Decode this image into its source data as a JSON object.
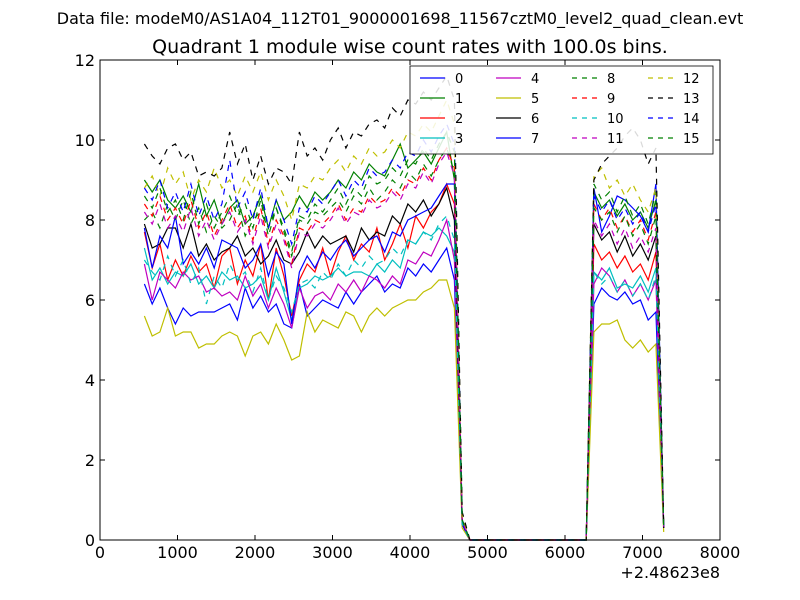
{
  "chart_data": {
    "type": "line",
    "suptitle": "Data file: modeM0/AS1A04_112T01_9000001698_11567cztM0_level2_quad_clean.evt",
    "title": "Quadrant 1 module wise count rates with 100.0s bins.",
    "xlabel": "",
    "ylabel": "",
    "x_offset_label": "+2.48623e8",
    "xlim": [
      0,
      8000
    ],
    "ylim": [
      0,
      12
    ],
    "xticks": [
      0,
      1000,
      2000,
      3000,
      4000,
      5000,
      6000,
      7000,
      8000
    ],
    "yticks": [
      0,
      2,
      4,
      6,
      8,
      10,
      12
    ],
    "grid": false,
    "legend_position": "top-right",
    "legend_columns": 4,
    "x": [
      573,
      673,
      773,
      873,
      973,
      1073,
      1173,
      1273,
      1373,
      1473,
      1573,
      1673,
      1773,
      1873,
      1973,
      2073,
      2173,
      2273,
      2373,
      2473,
      2573,
      2673,
      2773,
      2873,
      2973,
      3073,
      3173,
      3273,
      3373,
      3473,
      3573,
      3673,
      3773,
      3873,
      3973,
      4073,
      4173,
      4273,
      4373,
      4473,
      4573,
      4673,
      4773,
      4873,
      4973,
      5073,
      5173,
      5273,
      5373,
      5473,
      5573,
      5673,
      5773,
      5873,
      5973,
      6073,
      6173,
      6273,
      6373,
      6473,
      6573,
      6673,
      6773,
      6873,
      6973,
      7073,
      7173,
      7273
    ],
    "series": [
      {
        "name": "0",
        "color": "#0000ff",
        "dash": "solid",
        "values": [
          6.4,
          5.9,
          6.3,
          5.8,
          5.4,
          5.8,
          5.6,
          5.7,
          5.7,
          5.7,
          5.8,
          5.9,
          5.5,
          6.3,
          5.8,
          6.1,
          5.7,
          5.9,
          5.4,
          5.3,
          6.4,
          5.6,
          5.8,
          6.0,
          5.9,
          5.8,
          6.2,
          5.9,
          6.2,
          6.4,
          6.6,
          6.2,
          6.4,
          6.3,
          6.8,
          6.6,
          6.9,
          6.7,
          7.0,
          7.3,
          6.5,
          0.4,
          0.0,
          0.0,
          0.0,
          0.0,
          0.0,
          0.0,
          0.0,
          0.0,
          0.0,
          0.0,
          0.0,
          0.0,
          0.0,
          0.0,
          0.0,
          0.0,
          5.9,
          6.3,
          6.1,
          6.0,
          6.2,
          5.9,
          6.0,
          5.5,
          5.7,
          0.3
        ]
      },
      {
        "name": "1",
        "color": "#008000",
        "dash": "solid",
        "values": [
          9.0,
          8.7,
          9.0,
          8.5,
          8.3,
          8.6,
          8.2,
          8.9,
          8.1,
          8.5,
          7.9,
          8.3,
          8.5,
          7.9,
          8.1,
          8.6,
          7.8,
          8.5,
          8.0,
          8.2,
          8.6,
          8.3,
          8.7,
          8.5,
          8.7,
          9.0,
          8.8,
          9.2,
          9.0,
          9.4,
          9.2,
          9.1,
          9.5,
          9.9,
          9.3,
          9.5,
          9.7,
          9.4,
          9.8,
          10.2,
          9.0,
          0.5,
          0.0,
          0.0,
          0.0,
          0.0,
          0.0,
          0.0,
          0.0,
          0.0,
          0.0,
          0.0,
          0.0,
          0.0,
          0.0,
          0.0,
          0.0,
          0.0,
          8.7,
          8.3,
          8.5,
          8.1,
          8.4,
          8.0,
          8.2,
          7.8,
          8.5,
          0.3
        ]
      },
      {
        "name": "2",
        "color": "#ff0000",
        "dash": "solid",
        "values": [
          7.7,
          6.8,
          7.4,
          6.5,
          7.0,
          6.6,
          7.1,
          6.7,
          6.9,
          6.3,
          7.1,
          7.3,
          6.4,
          7.0,
          6.6,
          7.4,
          6.0,
          7.3,
          6.6,
          5.6,
          6.5,
          6.9,
          6.7,
          7.3,
          6.6,
          7.2,
          7.6,
          7.0,
          7.4,
          7.2,
          7.8,
          7.0,
          7.4,
          7.9,
          7.3,
          8.1,
          7.8,
          8.2,
          8.4,
          8.9,
          8.4,
          0.4,
          0.0,
          0.0,
          0.0,
          0.0,
          0.0,
          0.0,
          0.0,
          0.0,
          0.0,
          0.0,
          0.0,
          0.0,
          0.0,
          0.0,
          0.0,
          0.0,
          7.4,
          7.0,
          7.2,
          6.8,
          7.1,
          6.7,
          6.9,
          6.5,
          7.2,
          0.3
        ]
      },
      {
        "name": "3",
        "color": "#00bfbf",
        "dash": "solid",
        "values": [
          7.3,
          6.5,
          6.8,
          6.4,
          6.7,
          6.6,
          6.9,
          6.4,
          6.6,
          6.3,
          6.7,
          6.5,
          6.6,
          6.3,
          6.4,
          6.6,
          6.0,
          6.8,
          6.2,
          5.5,
          6.3,
          6.4,
          6.6,
          6.5,
          6.6,
          6.8,
          6.6,
          6.7,
          6.7,
          6.6,
          6.9,
          6.7,
          7.0,
          6.8,
          7.5,
          7.4,
          7.7,
          7.6,
          7.8,
          7.6,
          7.2,
          0.4,
          0.0,
          0.0,
          0.0,
          0.0,
          0.0,
          0.0,
          0.0,
          0.0,
          0.0,
          0.0,
          0.0,
          0.0,
          0.0,
          0.0,
          0.0,
          0.0,
          6.7,
          6.5,
          6.8,
          6.3,
          6.4,
          6.3,
          6.6,
          6.2,
          6.8,
          0.3
        ]
      },
      {
        "name": "4",
        "color": "#bf00bf",
        "dash": "solid",
        "values": [
          6.9,
          6.0,
          6.7,
          6.5,
          6.3,
          6.7,
          6.5,
          6.6,
          6.2,
          6.3,
          6.1,
          6.2,
          6.0,
          6.6,
          6.1,
          6.4,
          5.8,
          6.3,
          5.9,
          5.3,
          6.3,
          5.8,
          6.1,
          6.2,
          6.0,
          6.4,
          6.2,
          6.5,
          6.2,
          6.6,
          6.5,
          6.3,
          6.6,
          6.4,
          7.0,
          6.9,
          7.2,
          7.1,
          7.5,
          8.0,
          7.0,
          0.4,
          0.0,
          0.0,
          0.0,
          0.0,
          0.0,
          0.0,
          0.0,
          0.0,
          0.0,
          0.0,
          0.0,
          0.0,
          0.0,
          0.0,
          0.0,
          0.0,
          6.4,
          6.8,
          6.6,
          6.2,
          6.5,
          6.1,
          6.4,
          6.0,
          6.5,
          0.3
        ]
      },
      {
        "name": "5",
        "color": "#bfbf00",
        "dash": "solid",
        "values": [
          5.6,
          5.1,
          5.2,
          5.8,
          5.1,
          5.2,
          5.2,
          4.8,
          4.9,
          4.9,
          5.1,
          5.2,
          5.1,
          4.6,
          5.1,
          5.2,
          4.9,
          5.4,
          5.0,
          4.5,
          4.6,
          5.7,
          5.2,
          5.5,
          5.4,
          5.3,
          5.7,
          5.6,
          5.2,
          5.6,
          5.8,
          5.6,
          5.8,
          5.9,
          6.0,
          6.0,
          6.2,
          6.3,
          6.5,
          6.5,
          5.8,
          0.3,
          0.0,
          0.0,
          0.0,
          0.0,
          0.0,
          0.0,
          0.0,
          0.0,
          0.0,
          0.0,
          0.0,
          0.0,
          0.0,
          0.0,
          0.0,
          0.0,
          5.2,
          5.4,
          5.4,
          5.5,
          5.0,
          4.8,
          5.0,
          4.7,
          4.9,
          0.2
        ]
      },
      {
        "name": "6",
        "color": "#000000",
        "dash": "solid",
        "values": [
          7.9,
          7.3,
          7.4,
          7.8,
          7.8,
          7.3,
          7.9,
          7.1,
          7.4,
          7.0,
          7.2,
          7.3,
          7.6,
          7.1,
          7.3,
          6.9,
          7.1,
          7.5,
          7.0,
          6.9,
          7.2,
          7.7,
          7.3,
          7.6,
          7.4,
          7.5,
          7.6,
          7.2,
          7.8,
          7.5,
          7.7,
          7.6,
          8.1,
          7.9,
          8.4,
          8.2,
          8.5,
          8.1,
          8.4,
          8.8,
          8.0,
          0.4,
          0.0,
          0.0,
          0.0,
          0.0,
          0.0,
          0.0,
          0.0,
          0.0,
          0.0,
          0.0,
          0.0,
          0.0,
          0.0,
          0.0,
          0.0,
          0.0,
          7.9,
          7.5,
          7.7,
          7.2,
          7.6,
          7.1,
          7.4,
          7.0,
          7.6,
          0.3
        ]
      },
      {
        "name": "7",
        "color": "#0000ff",
        "dash": "solid",
        "values": [
          7.8,
          6.8,
          7.6,
          7.3,
          8.1,
          6.9,
          7.2,
          6.9,
          7.3,
          6.8,
          7.5,
          7.4,
          7.3,
          6.8,
          7.0,
          7.4,
          6.6,
          7.2,
          6.9,
          5.4,
          6.7,
          7.1,
          6.8,
          7.2,
          7.0,
          7.3,
          7.5,
          7.1,
          7.3,
          7.5,
          7.6,
          7.2,
          7.7,
          7.6,
          8.0,
          8.1,
          8.2,
          8.3,
          8.6,
          8.9,
          8.9,
          0.4,
          0.0,
          0.0,
          0.0,
          0.0,
          0.0,
          0.0,
          0.0,
          0.0,
          0.0,
          0.0,
          0.0,
          0.0,
          0.0,
          0.0,
          0.0,
          0.0,
          8.8,
          7.7,
          8.1,
          8.6,
          8.5,
          8.3,
          8.1,
          7.7,
          8.9,
          0.3
        ]
      },
      {
        "name": "8",
        "color": "#008000",
        "dash": "dashed",
        "values": [
          8.0,
          8.2,
          7.8,
          8.4,
          8.0,
          8.5,
          7.9,
          8.3,
          7.7,
          8.1,
          7.8,
          8.0,
          8.4,
          7.6,
          8.0,
          8.2,
          7.8,
          8.3,
          7.7,
          7.1,
          8.0,
          7.9,
          8.2,
          8.1,
          8.3,
          8.5,
          8.2,
          8.6,
          8.4,
          8.8,
          8.5,
          8.7,
          9.0,
          8.8,
          9.2,
          9.0,
          9.4,
          9.1,
          9.5,
          9.8,
          9.2,
          0.5,
          0.0,
          0.0,
          0.0,
          0.0,
          0.0,
          0.0,
          0.0,
          0.0,
          0.0,
          0.0,
          0.0,
          0.0,
          0.0,
          0.0,
          0.0,
          0.0,
          8.9,
          8.5,
          8.7,
          8.2,
          8.6,
          8.1,
          8.4,
          7.9,
          8.7,
          0.3
        ]
      },
      {
        "name": "9",
        "color": "#ff0000",
        "dash": "dashed",
        "values": [
          8.4,
          8.1,
          8.6,
          8.0,
          8.3,
          7.9,
          8.5,
          7.8,
          8.2,
          7.6,
          8.0,
          8.4,
          7.8,
          8.1,
          7.5,
          8.3,
          7.4,
          8.0,
          7.6,
          6.9,
          7.8,
          7.7,
          8.0,
          7.9,
          8.1,
          8.4,
          8.0,
          8.3,
          8.2,
          8.6,
          8.4,
          8.5,
          8.8,
          8.6,
          9.0,
          8.9,
          9.3,
          9.0,
          9.5,
          9.8,
          9.3,
          0.5,
          0.0,
          0.0,
          0.0,
          0.0,
          0.0,
          0.0,
          0.0,
          0.0,
          0.0,
          0.0,
          0.0,
          0.0,
          0.0,
          0.0,
          0.0,
          0.0,
          8.4,
          8.0,
          8.3,
          7.8,
          8.1,
          7.7,
          8.0,
          7.5,
          8.2,
          0.3
        ]
      },
      {
        "name": "10",
        "color": "#00bfbf",
        "dash": "dashed",
        "values": [
          7.0,
          6.7,
          6.5,
          7.1,
          6.6,
          7.0,
          6.4,
          6.8,
          5.9,
          6.6,
          6.3,
          6.9,
          6.5,
          6.7,
          6.2,
          6.8,
          6.0,
          6.6,
          6.3,
          5.7,
          6.4,
          6.5,
          6.3,
          6.7,
          6.5,
          6.9,
          6.6,
          7.0,
          6.8,
          7.1,
          6.9,
          7.0,
          7.3,
          7.1,
          7.5,
          7.4,
          7.7,
          7.5,
          7.9,
          8.1,
          7.5,
          0.4,
          0.0,
          0.0,
          0.0,
          0.0,
          0.0,
          0.0,
          0.0,
          0.0,
          0.0,
          0.0,
          0.0,
          0.0,
          0.0,
          0.0,
          0.0,
          0.0,
          6.7,
          6.4,
          6.6,
          6.2,
          6.5,
          6.1,
          6.4,
          6.0,
          6.6,
          0.3
        ]
      },
      {
        "name": "11",
        "color": "#bf00bf",
        "dash": "dashed",
        "values": [
          8.2,
          7.9,
          8.4,
          7.8,
          8.1,
          7.7,
          8.3,
          7.6,
          8.0,
          7.5,
          7.9,
          8.2,
          7.7,
          8.0,
          7.4,
          8.1,
          7.3,
          7.9,
          7.5,
          6.8,
          7.7,
          7.6,
          7.9,
          7.8,
          8.0,
          8.3,
          7.9,
          8.2,
          8.1,
          8.5,
          8.3,
          8.4,
          8.7,
          8.5,
          8.9,
          8.8,
          9.2,
          8.9,
          9.4,
          9.7,
          9.1,
          0.5,
          0.0,
          0.0,
          0.0,
          0.0,
          0.0,
          0.0,
          0.0,
          0.0,
          0.0,
          0.0,
          0.0,
          0.0,
          0.0,
          0.0,
          0.0,
          0.0,
          8.0,
          7.6,
          7.9,
          7.4,
          7.8,
          7.3,
          7.6,
          7.2,
          7.8,
          0.3
        ]
      },
      {
        "name": "12",
        "color": "#bfbf00",
        "dash": "dashed",
        "values": [
          8.8,
          9.1,
          8.6,
          9.3,
          8.9,
          9.2,
          8.5,
          9.0,
          8.7,
          9.3,
          8.8,
          9.0,
          8.6,
          9.1,
          8.7,
          9.2,
          8.5,
          9.0,
          8.6,
          8.0,
          8.9,
          8.8,
          9.1,
          9.0,
          9.3,
          9.5,
          9.2,
          9.6,
          9.4,
          9.8,
          9.6,
          9.7,
          10.0,
          9.8,
          10.2,
          10.1,
          10.4,
          10.2,
          10.6,
          11.0,
          10.4,
          0.6,
          0.0,
          0.0,
          0.0,
          0.0,
          0.0,
          0.0,
          0.0,
          0.0,
          0.0,
          0.0,
          0.0,
          0.0,
          0.0,
          0.0,
          0.0,
          0.0,
          9.1,
          9.3,
          8.8,
          9.0,
          8.6,
          8.9,
          8.5,
          8.2,
          8.8,
          0.3
        ]
      },
      {
        "name": "13",
        "color": "#000000",
        "dash": "dashed",
        "values": [
          9.9,
          9.6,
          9.4,
          9.8,
          9.9,
          9.5,
          9.7,
          9.1,
          9.2,
          9.1,
          9.3,
          10.2,
          9.4,
          9.9,
          9.0,
          9.6,
          8.9,
          9.3,
          9.2,
          8.9,
          10.2,
          9.6,
          9.8,
          9.5,
          10.0,
          10.3,
          9.8,
          10.2,
          10.1,
          10.4,
          10.5,
          10.3,
          10.8,
          10.6,
          11.0,
          10.9,
          11.2,
          11.0,
          11.3,
          11.6,
          11.0,
          0.7,
          0.0,
          0.0,
          0.0,
          0.0,
          0.0,
          0.0,
          0.0,
          0.0,
          0.0,
          0.0,
          0.0,
          0.0,
          0.0,
          0.0,
          0.0,
          0.0,
          9.0,
          9.4,
          9.6,
          9.8,
          10.1,
          10.3,
          10.0,
          9.4,
          9.8,
          0.3
        ]
      },
      {
        "name": "14",
        "color": "#0000ff",
        "dash": "dashed",
        "values": [
          8.8,
          8.5,
          9.0,
          8.3,
          8.7,
          8.2,
          8.9,
          8.1,
          8.6,
          8.0,
          8.4,
          9.5,
          8.3,
          8.7,
          8.0,
          8.8,
          7.8,
          8.5,
          8.0,
          7.4,
          8.3,
          8.2,
          8.6,
          8.4,
          8.7,
          9.0,
          8.6,
          9.0,
          8.8,
          9.3,
          9.1,
          9.2,
          9.5,
          9.3,
          9.7,
          9.6,
          10.0,
          9.7,
          10.1,
          10.4,
          9.9,
          0.5,
          0.0,
          0.0,
          0.0,
          0.0,
          0.0,
          0.0,
          0.0,
          0.0,
          0.0,
          0.0,
          0.0,
          0.0,
          0.0,
          0.0,
          0.0,
          0.0,
          8.6,
          8.2,
          8.5,
          8.0,
          8.3,
          7.9,
          8.2,
          7.7,
          8.4,
          0.3
        ]
      },
      {
        "name": "15",
        "color": "#008000",
        "dash": "dashed",
        "values": [
          8.6,
          8.3,
          8.8,
          8.2,
          8.5,
          8.0,
          8.7,
          7.9,
          8.4,
          7.8,
          8.2,
          8.6,
          8.1,
          8.4,
          7.8,
          8.5,
          7.6,
          8.3,
          7.8,
          7.2,
          8.1,
          8.0,
          8.4,
          8.2,
          8.5,
          8.8,
          8.4,
          8.8,
          8.6,
          9.1,
          8.9,
          9.0,
          9.3,
          9.1,
          9.5,
          9.4,
          9.8,
          9.5,
          9.9,
          10.2,
          9.7,
          0.5,
          0.0,
          0.0,
          0.0,
          0.0,
          0.0,
          0.0,
          0.0,
          0.0,
          0.0,
          0.0,
          0.0,
          0.0,
          0.0,
          0.0,
          0.0,
          0.0,
          8.3,
          8.0,
          8.2,
          7.7,
          8.1,
          7.6,
          7.9,
          7.4,
          8.1,
          0.3
        ]
      }
    ]
  }
}
